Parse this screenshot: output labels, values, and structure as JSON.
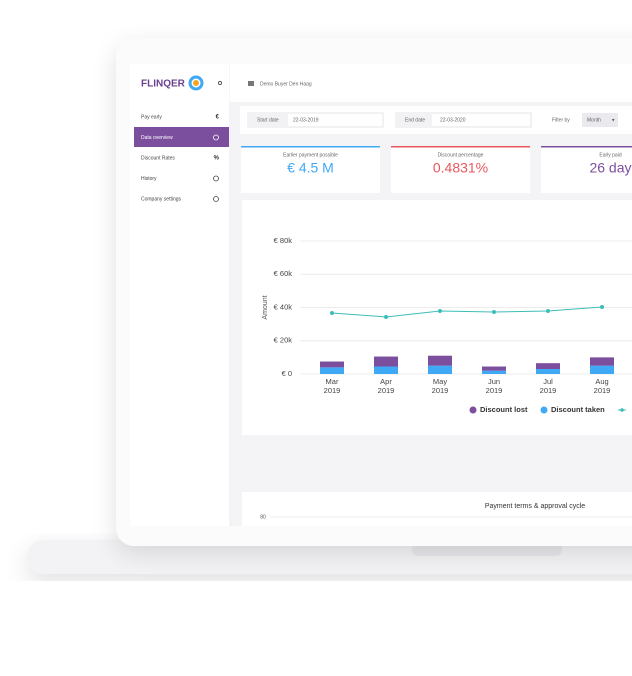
{
  "brand": "FLINQER",
  "sidebar": [
    {
      "label": "Pay early",
      "icon": "€"
    },
    {
      "label": "Data overview"
    },
    {
      "label": "Discount Rates",
      "icon": "%"
    },
    {
      "label": "History"
    },
    {
      "label": "Company settings"
    }
  ],
  "header": {
    "company": "Demo Buyer Den Haag"
  },
  "filters": {
    "start_label": "Start date",
    "start_value": "22-03-2019",
    "end_label": "End date",
    "end_value": "22-03-2020",
    "filter_label": "Filter by",
    "filter_value": "Month"
  },
  "kpis": [
    {
      "title": "Earlier payment possible",
      "value": "€ 4.5 M",
      "color": "#3fa9f5"
    },
    {
      "title": "Discount percentage",
      "value": "0.4831%",
      "color": "#e8575f"
    },
    {
      "title": "Early paid",
      "value": "26 day",
      "color": "#7b4f9e"
    }
  ],
  "chart_data": {
    "type": "bar",
    "y_label": "Amount",
    "categories": [
      [
        "Mar",
        "2019"
      ],
      [
        "Apr",
        "2019"
      ],
      [
        "May",
        "2019"
      ],
      [
        "Jun",
        "2019"
      ],
      [
        "Jul",
        "2019"
      ],
      [
        "Aug",
        "2019"
      ]
    ],
    "series": [
      {
        "name": "Discount taken",
        "color": "#3fa9f5",
        "values": [
          4000,
          4500,
          5000,
          2000,
          3000,
          5000
        ]
      },
      {
        "name": "Discount lost",
        "color": "#7b4f9e",
        "values": [
          3500,
          6000,
          6000,
          2500,
          3500,
          5000
        ]
      },
      {
        "type": "line",
        "color": "#3dbdb9",
        "values": [
          36700,
          34300,
          37900,
          37300,
          37900,
          40300
        ]
      }
    ],
    "ylim": [
      0,
      80000
    ],
    "yticks": [
      {
        "value": 0,
        "label": "€ 0"
      },
      {
        "value": 20000,
        "label": "€ 20k"
      },
      {
        "value": 40000,
        "label": "€ 40k"
      },
      {
        "value": 60000,
        "label": "€ 60k"
      },
      {
        "value": 80000,
        "label": "€ 80k"
      }
    ],
    "grid": true
  },
  "payment_chart": {
    "title": "Payment terms & approval cycle",
    "ytick": "80"
  }
}
